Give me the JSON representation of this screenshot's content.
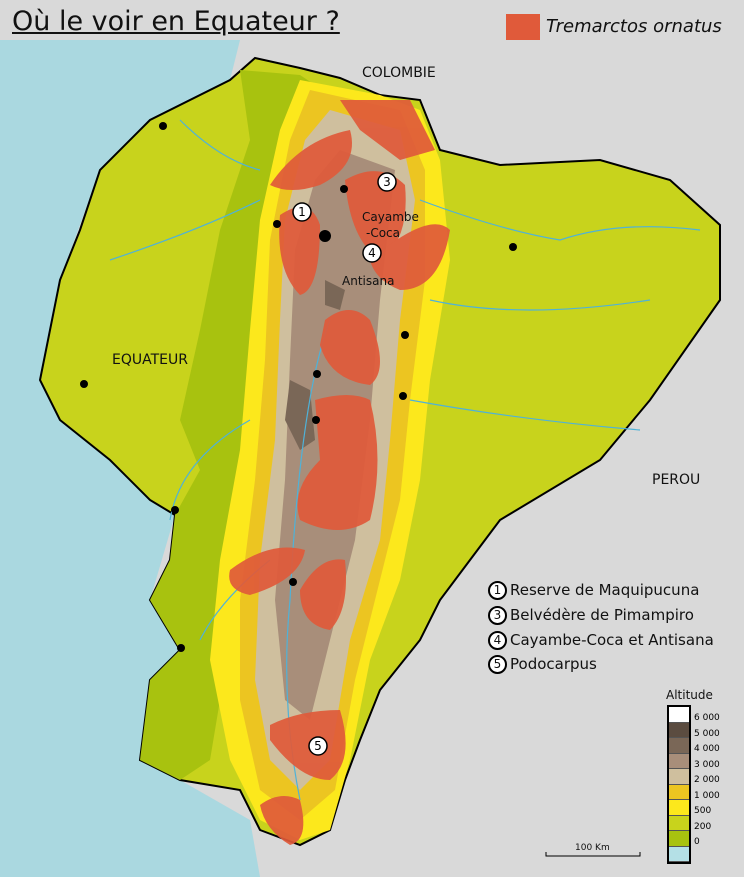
{
  "title": "Où le voir en Equateur ?",
  "legend_species": {
    "label": "Tremarctos ornatus",
    "color": "#e05a3a"
  },
  "countries": {
    "colombia": "COLOMBIE",
    "ecuador": "EQUATEUR",
    "peru": "PEROU"
  },
  "place_labels": {
    "cayambe": "Cayambe",
    "coca": "-Coca",
    "antisana": "Antisana"
  },
  "sites": [
    {
      "num": "1",
      "name": "Reserve de Maquipucuna"
    },
    {
      "num": "3",
      "name": "Belvédère de Pimampiro"
    },
    {
      "num": "4",
      "name": "Cayambe-Coca et Antisana"
    },
    {
      "num": "5",
      "name": "Podocarpus"
    }
  ],
  "altitude": {
    "title": "Altitude",
    "ticks": [
      "6 000",
      "5 000",
      "4 000",
      "3 000",
      "2 000",
      "1 000",
      "500",
      "200",
      "0"
    ],
    "colors": [
      "#ffffff",
      "#5b4c40",
      "#7a6757",
      "#a88e7a",
      "#cfbf9e",
      "#ecc521",
      "#fce81c",
      "#c8d31c",
      "#a8c20f",
      "#b4e0e6"
    ]
  },
  "scale": "100 Km",
  "colors": {
    "background": "#d9d9d9",
    "sea": "#aad8e0",
    "river": "#4fb2d8",
    "habitat": "#e05a3a"
  }
}
